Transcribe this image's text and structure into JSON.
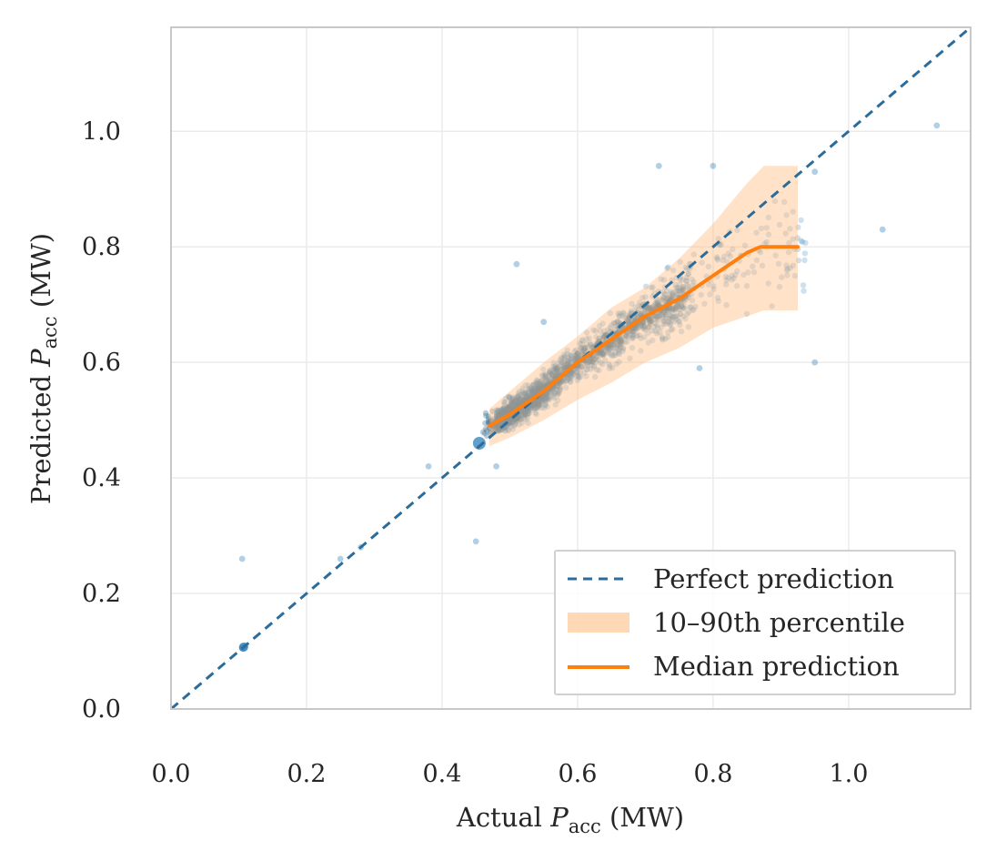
{
  "chart_data": {
    "type": "scatter",
    "title": "",
    "xlabel": {
      "prefix": "Actual ",
      "symbol": "P",
      "subscript": "acc",
      "suffix": " (MW)"
    },
    "ylabel": {
      "prefix": "Predicted ",
      "symbol": "P",
      "subscript": "acc",
      "suffix": " (MW)"
    },
    "xlim": [
      0.0,
      1.18
    ],
    "ylim": [
      0.0,
      1.18
    ],
    "xticks": [
      "0.0",
      "0.2",
      "0.4",
      "0.6",
      "0.8",
      "1.0"
    ],
    "yticks": [
      "0.0",
      "0.2",
      "0.4",
      "0.6",
      "0.8",
      "1.0"
    ],
    "grid": true,
    "legend": {
      "placement": "bottom-right",
      "entries": [
        {
          "label": "Perfect prediction",
          "style": "dashed-line"
        },
        {
          "label": "10–90th percentile",
          "style": "band"
        },
        {
          "label": "Median prediction",
          "style": "solid-line"
        }
      ]
    },
    "colors": {
      "scatter": "#1f77b4",
      "perfect": "#2b6c9a",
      "band": "#ffbe86",
      "median": "#ff7f0e"
    },
    "perfect_line": {
      "x": [
        0.0,
        1.18
      ],
      "y": [
        0.0,
        1.18
      ]
    },
    "percentile_band": {
      "x": [
        0.47,
        0.5,
        0.55,
        0.6,
        0.65,
        0.7,
        0.75,
        0.8,
        0.85,
        0.875,
        0.925
      ],
      "lo": [
        0.455,
        0.47,
        0.5,
        0.535,
        0.565,
        0.6,
        0.625,
        0.66,
        0.68,
        0.69,
        0.69
      ],
      "hi": [
        0.52,
        0.55,
        0.6,
        0.645,
        0.695,
        0.73,
        0.78,
        0.84,
        0.91,
        0.94,
        0.94
      ]
    },
    "median_prediction": {
      "x": [
        0.47,
        0.5,
        0.55,
        0.6,
        0.65,
        0.7,
        0.75,
        0.8,
        0.85,
        0.87,
        0.925
      ],
      "y": [
        0.49,
        0.51,
        0.55,
        0.6,
        0.64,
        0.68,
        0.71,
        0.75,
        0.79,
        0.8,
        0.8
      ]
    },
    "scatter_summary": {
      "n_points": 1400,
      "x_range": [
        0.44,
        0.95
      ],
      "note": "dense cloud around the diagonal; a few sparse outliers",
      "outliers": [
        {
          "x": 0.105,
          "y": 0.105
        },
        {
          "x": 0.11,
          "y": 0.11
        },
        {
          "x": 0.105,
          "y": 0.26
        },
        {
          "x": 0.25,
          "y": 0.26
        },
        {
          "x": 0.28,
          "y": 0.28
        },
        {
          "x": 0.45,
          "y": 0.29
        },
        {
          "x": 1.13,
          "y": 1.01
        },
        {
          "x": 0.72,
          "y": 0.94
        },
        {
          "x": 0.8,
          "y": 0.94
        },
        {
          "x": 0.95,
          "y": 0.93
        },
        {
          "x": 1.05,
          "y": 0.83
        },
        {
          "x": 0.95,
          "y": 0.6
        },
        {
          "x": 0.78,
          "y": 0.59
        },
        {
          "x": 0.48,
          "y": 0.42
        },
        {
          "x": 0.38,
          "y": 0.42
        },
        {
          "x": 0.55,
          "y": 0.67
        },
        {
          "x": 0.51,
          "y": 0.77
        }
      ]
    }
  }
}
